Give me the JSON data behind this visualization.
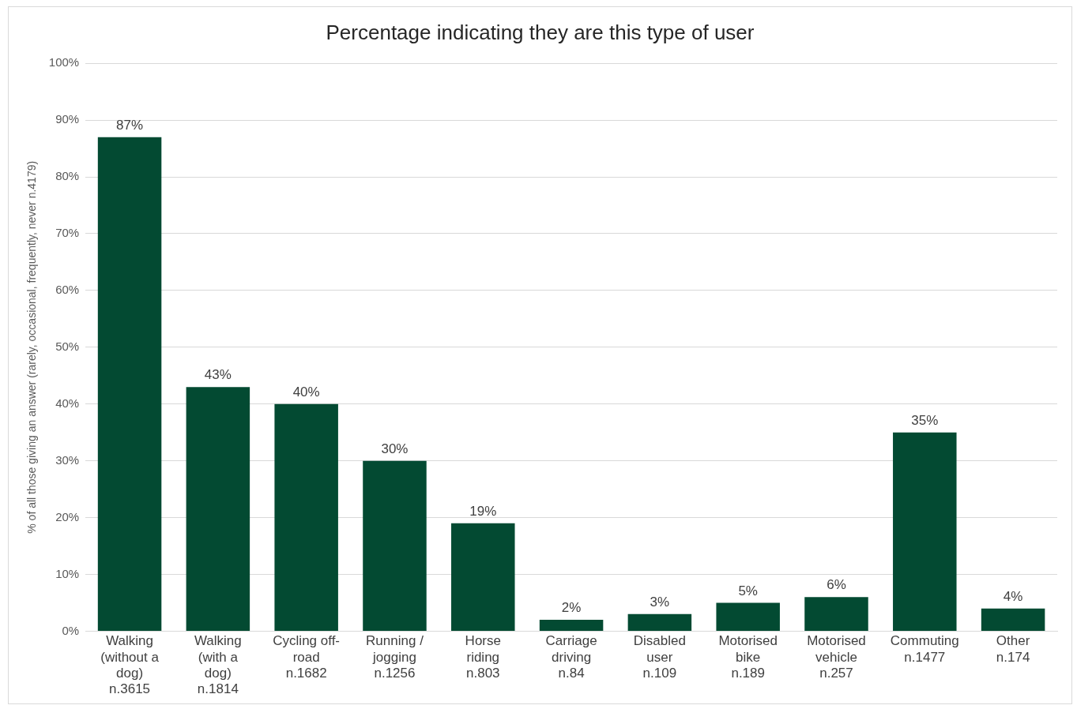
{
  "chart_data": {
    "type": "bar",
    "title": "Percentage indicating they are this type of user",
    "ylabel": "% of all those giving an answer (rarely, occasional, frequently, never n.4179)",
    "categories": [
      "Walking\n(without a\ndog)\nn.3615",
      "Walking\n(with a\ndog)\nn.1814",
      "Cycling off-\nroad\nn.1682",
      "Running /\njogging\nn.1256",
      "Horse\nriding\nn.803",
      "Carriage\ndriving\nn.84",
      "Disabled\nuser\nn.109",
      "Motorised\nbike\nn.189",
      "Motorised\nvehicle\nn.257",
      "Commuting\nn.1477",
      "Other\nn.174"
    ],
    "values": [
      87,
      43,
      40,
      30,
      19,
      2,
      3,
      5,
      6,
      35,
      4
    ],
    "value_labels": [
      "87%",
      "43%",
      "40%",
      "30%",
      "19%",
      "2%",
      "3%",
      "5%",
      "6%",
      "35%",
      "4%"
    ],
    "color": "#034a32",
    "ylim": [
      0,
      100
    ],
    "yticks": [
      {
        "value": 0,
        "label": "0%"
      },
      {
        "value": 10,
        "label": "10%"
      },
      {
        "value": 20,
        "label": "20%"
      },
      {
        "value": 30,
        "label": "30%"
      },
      {
        "value": 40,
        "label": "40%"
      },
      {
        "value": 50,
        "label": "50%"
      },
      {
        "value": 60,
        "label": "60%"
      },
      {
        "value": 70,
        "label": "70%"
      },
      {
        "value": 80,
        "label": "80%"
      },
      {
        "value": 90,
        "label": "90%"
      },
      {
        "value": 100,
        "label": "100%"
      }
    ],
    "grid": "y"
  }
}
